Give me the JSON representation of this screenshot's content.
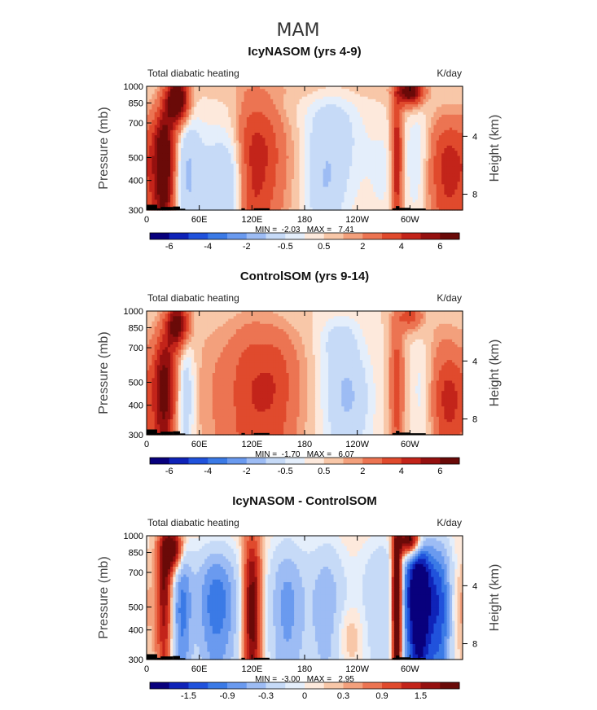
{
  "figure_title": "MAM",
  "colors": {
    "palette": [
      "#08007d",
      "#0f23b8",
      "#2052dc",
      "#3b7ae6",
      "#6a9aef",
      "#9dbcf4",
      "#c6daf7",
      "#e4eefb",
      "#fde9dc",
      "#f8c7a8",
      "#f3a07c",
      "#ec7452",
      "#e04a2d",
      "#c3241a",
      "#95100f",
      "#6a0a08"
    ],
    "land": "#000000"
  },
  "chart_data": [
    {
      "type": "heatmap",
      "title": "IcyNASOM (yrs 4-9)",
      "left_label": "Total diabatic heating",
      "right_label": "K/day",
      "ylabel": "Pressure (mb)",
      "y2label": "Height (km)",
      "x_ticks": [
        "0",
        "60E",
        "120E",
        "180",
        "120W",
        "60W"
      ],
      "x_tick_values": [
        0,
        60,
        120,
        180,
        240,
        300
      ],
      "xlim": [
        0,
        360
      ],
      "y_ticks": [
        "300",
        "400",
        "500",
        "700",
        "850",
        "1000"
      ],
      "y_tick_values": [
        300,
        400,
        500,
        700,
        850,
        1000
      ],
      "ylim": [
        1000,
        300
      ],
      "y2_ticks": [
        "8",
        "4"
      ],
      "y2_tick_pressures": [
        350,
        615
      ],
      "stats": "MIN =  -2.03   MAX =   7.41",
      "min": -2.03,
      "max": 7.41,
      "colorbar_labels": [
        "-6",
        "-4",
        "-2",
        "-0.5",
        "0.5",
        "2",
        "4",
        "6"
      ],
      "levels": [
        -7,
        -6,
        -5,
        -4,
        -3,
        -2,
        -1,
        -0.5,
        0,
        0.5,
        1,
        2,
        3,
        4,
        5,
        6,
        7
      ],
      "features": [
        {
          "lon": 20,
          "p": 480,
          "a": 6.5,
          "w": 9,
          "h": 220
        },
        {
          "lon": 35,
          "p": 880,
          "a": 7.4,
          "w": 9,
          "h": 130
        },
        {
          "lon": 45,
          "p": 450,
          "a": -1.8,
          "w": 11,
          "h": 250
        },
        {
          "lon": 80,
          "p": 400,
          "a": -1.3,
          "w": 22,
          "h": 200
        },
        {
          "lon": 100,
          "p": 380,
          "a": -1.0,
          "w": 12,
          "h": 150
        },
        {
          "lon": 118,
          "p": 450,
          "a": 3.0,
          "w": 12,
          "h": 300
        },
        {
          "lon": 138,
          "p": 520,
          "a": 2.0,
          "w": 12,
          "h": 250
        },
        {
          "lon": 160,
          "p": 500,
          "a": 0.8,
          "w": 15,
          "h": 200
        },
        {
          "lon": 210,
          "p": 600,
          "a": -1.9,
          "w": 22,
          "h": 220
        },
        {
          "lon": 200,
          "p": 350,
          "a": -1.0,
          "w": 15,
          "h": 100
        },
        {
          "lon": 270,
          "p": 450,
          "a": -0.6,
          "w": 15,
          "h": 180
        },
        {
          "lon": 285,
          "p": 500,
          "a": 4.0,
          "w": 4.5,
          "h": 300
        },
        {
          "lon": 300,
          "p": 950,
          "a": 6.5,
          "w": 10,
          "h": 80
        },
        {
          "lon": 310,
          "p": 500,
          "a": -1.2,
          "w": 10,
          "h": 200
        },
        {
          "lon": 345,
          "p": 450,
          "a": 3.5,
          "w": 18,
          "h": 200
        },
        {
          "lon": 180,
          "p": 980,
          "a": 0.4,
          "w": 80,
          "h": 80
        }
      ]
    },
    {
      "type": "heatmap",
      "title": "ControlSOM (yrs 9-14)",
      "left_label": "Total diabatic heating",
      "right_label": "K/day",
      "ylabel": "Pressure (mb)",
      "y2label": "Height (km)",
      "x_ticks": [
        "0",
        "60E",
        "120E",
        "180",
        "120W",
        "60W"
      ],
      "x_tick_values": [
        0,
        60,
        120,
        180,
        240,
        300
      ],
      "xlim": [
        0,
        360
      ],
      "y_ticks": [
        "300",
        "400",
        "500",
        "700",
        "850",
        "1000"
      ],
      "y_tick_values": [
        300,
        400,
        500,
        700,
        850,
        1000
      ],
      "ylim": [
        1000,
        300
      ],
      "y2_ticks": [
        "8",
        "4"
      ],
      "y2_tick_pressures": [
        350,
        615
      ],
      "stats": "MIN =  -1.70   MAX =   6.07",
      "min": -1.7,
      "max": 6.07,
      "colorbar_labels": [
        "-6",
        "-4",
        "-2",
        "-0.5",
        "0.5",
        "2",
        "4",
        "6"
      ],
      "levels": [
        -7,
        -6,
        -5,
        -4,
        -3,
        -2,
        -1,
        -0.5,
        0,
        0.5,
        1,
        2,
        3,
        4,
        5,
        6,
        7
      ],
      "features": [
        {
          "lon": 20,
          "p": 470,
          "a": 5.5,
          "w": 9,
          "h": 220
        },
        {
          "lon": 35,
          "p": 880,
          "a": 6.0,
          "w": 9,
          "h": 130
        },
        {
          "lon": 45,
          "p": 450,
          "a": -1.7,
          "w": 7,
          "h": 250
        },
        {
          "lon": 75,
          "p": 450,
          "a": 0.8,
          "w": 18,
          "h": 300
        },
        {
          "lon": 120,
          "p": 450,
          "a": 2.8,
          "w": 20,
          "h": 300
        },
        {
          "lon": 150,
          "p": 480,
          "a": 1.8,
          "w": 14,
          "h": 250
        },
        {
          "lon": 175,
          "p": 500,
          "a": 0.6,
          "w": 14,
          "h": 250
        },
        {
          "lon": 230,
          "p": 420,
          "a": -1.5,
          "w": 18,
          "h": 150
        },
        {
          "lon": 220,
          "p": 750,
          "a": -1.0,
          "w": 15,
          "h": 120
        },
        {
          "lon": 225,
          "p": 550,
          "a": -0.7,
          "w": 20,
          "h": 300
        },
        {
          "lon": 285,
          "p": 500,
          "a": 2.5,
          "w": 6,
          "h": 300
        },
        {
          "lon": 300,
          "p": 950,
          "a": 2.5,
          "w": 10,
          "h": 80
        },
        {
          "lon": 315,
          "p": 480,
          "a": -1.0,
          "w": 10,
          "h": 200
        },
        {
          "lon": 345,
          "p": 400,
          "a": 3.0,
          "w": 15,
          "h": 150
        },
        {
          "lon": 340,
          "p": 650,
          "a": 1.0,
          "w": 18,
          "h": 200
        }
      ]
    },
    {
      "type": "heatmap",
      "title": "IcyNASOM - ControlSOM",
      "left_label": "Total diabatic heating",
      "right_label": "K/day",
      "ylabel": "Pressure (mb)",
      "y2label": "Height (km)",
      "x_ticks": [
        "0",
        "60E",
        "120E",
        "180",
        "120W",
        "60W"
      ],
      "x_tick_values": [
        0,
        60,
        120,
        180,
        240,
        300
      ],
      "xlim": [
        0,
        360
      ],
      "y_ticks": [
        "300",
        "400",
        "500",
        "700",
        "850",
        "1000"
      ],
      "y_tick_values": [
        300,
        400,
        500,
        700,
        850,
        1000
      ],
      "ylim": [
        1000,
        300
      ],
      "y2_ticks": [
        "8",
        "4"
      ],
      "y2_tick_pressures": [
        350,
        615
      ],
      "stats": "MIN =  -3.00   MAX =   2.95",
      "min": -3.0,
      "max": 2.95,
      "colorbar_labels": [
        "-1.5",
        "-0.9",
        "-0.3",
        "0",
        "0.3",
        "0.9",
        "1.5"
      ],
      "levels": [
        -2.1,
        -1.8,
        -1.5,
        -1.2,
        -0.9,
        -0.6,
        -0.3,
        -0.15,
        0,
        0.15,
        0.3,
        0.6,
        0.9,
        1.2,
        1.5,
        1.8,
        2.1
      ],
      "features": [
        {
          "lon": 20,
          "p": 600,
          "a": 1.5,
          "w": 6,
          "h": 300
        },
        {
          "lon": 30,
          "p": 880,
          "a": 2.0,
          "w": 8,
          "h": 120
        },
        {
          "lon": 40,
          "p": 500,
          "a": -1.2,
          "w": 8,
          "h": 300
        },
        {
          "lon": 80,
          "p": 520,
          "a": -1.4,
          "w": 18,
          "h": 250
        },
        {
          "lon": 120,
          "p": 500,
          "a": 1.8,
          "w": 7,
          "h": 350
        },
        {
          "lon": 160,
          "p": 500,
          "a": -1.0,
          "w": 15,
          "h": 300
        },
        {
          "lon": 205,
          "p": 500,
          "a": -0.8,
          "w": 15,
          "h": 300
        },
        {
          "lon": 230,
          "p": 380,
          "a": 0.3,
          "w": 12,
          "h": 80
        },
        {
          "lon": 270,
          "p": 550,
          "a": -0.6,
          "w": 20,
          "h": 300
        },
        {
          "lon": 285,
          "p": 550,
          "a": 2.9,
          "w": 4,
          "h": 350
        },
        {
          "lon": 300,
          "p": 950,
          "a": 2.5,
          "w": 9,
          "h": 90
        },
        {
          "lon": 310,
          "p": 550,
          "a": -2.8,
          "w": 11,
          "h": 300
        },
        {
          "lon": 335,
          "p": 500,
          "a": -1.5,
          "w": 10,
          "h": 300
        },
        {
          "lon": 355,
          "p": 500,
          "a": 0.3,
          "w": 8,
          "h": 150
        }
      ]
    }
  ]
}
